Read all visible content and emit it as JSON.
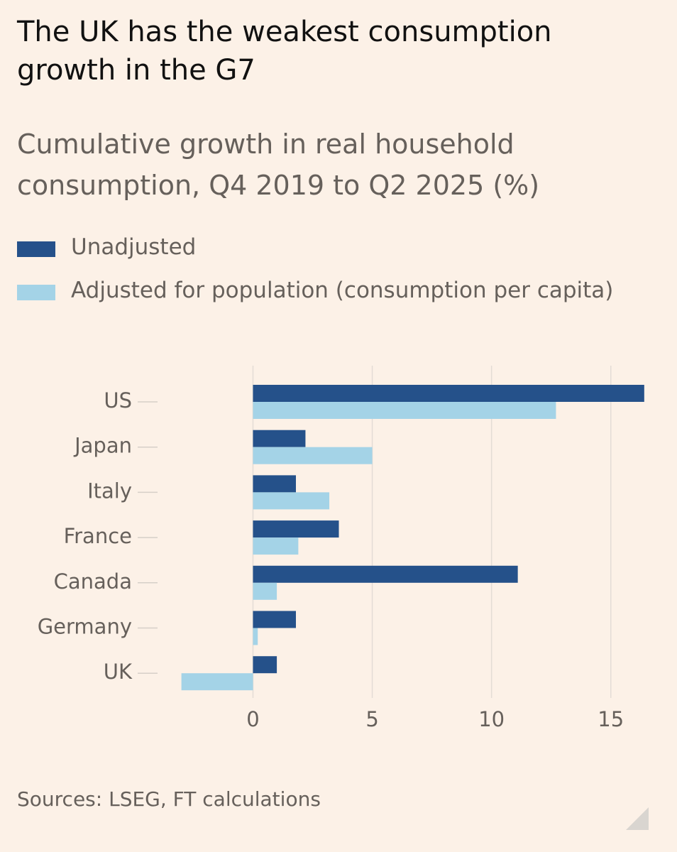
{
  "header": {
    "title": "The UK has the weakest consumption growth in the G7",
    "subtitle": "Cumulative growth in real household consumption, Q4 2019 to Q2 2025 (%)"
  },
  "legend": {
    "items": [
      {
        "label": "Unadjusted",
        "color": "#25518a"
      },
      {
        "label": "Adjusted for population (consumption per capita)",
        "color": "#a4d3e7"
      }
    ]
  },
  "chart_data": {
    "type": "bar",
    "orientation": "horizontal",
    "title": "The UK has the weakest consumption growth in the G7",
    "subtitle": "Cumulative growth in real household consumption, Q4 2019 to Q2 2025 (%)",
    "categories": [
      "US",
      "Japan",
      "Italy",
      "France",
      "Canada",
      "Germany",
      "UK"
    ],
    "series": [
      {
        "name": "Unadjusted",
        "color": "#25518a",
        "values": [
          16.4,
          2.2,
          1.8,
          3.6,
          11.1,
          1.8,
          1.0
        ]
      },
      {
        "name": "Adjusted for population (consumption per capita)",
        "color": "#a4d3e7",
        "values": [
          12.7,
          5.0,
          3.2,
          1.9,
          1.0,
          0.2,
          -3.0
        ]
      }
    ],
    "xlim": [
      -4,
      17
    ],
    "xticks": [
      0,
      5,
      10,
      15
    ],
    "xtick_labels": [
      "0",
      "5",
      "10",
      "15"
    ],
    "grid": true,
    "legend_position": "top-left"
  },
  "footer": {
    "source": "Sources: LSEG, FT calculations"
  }
}
